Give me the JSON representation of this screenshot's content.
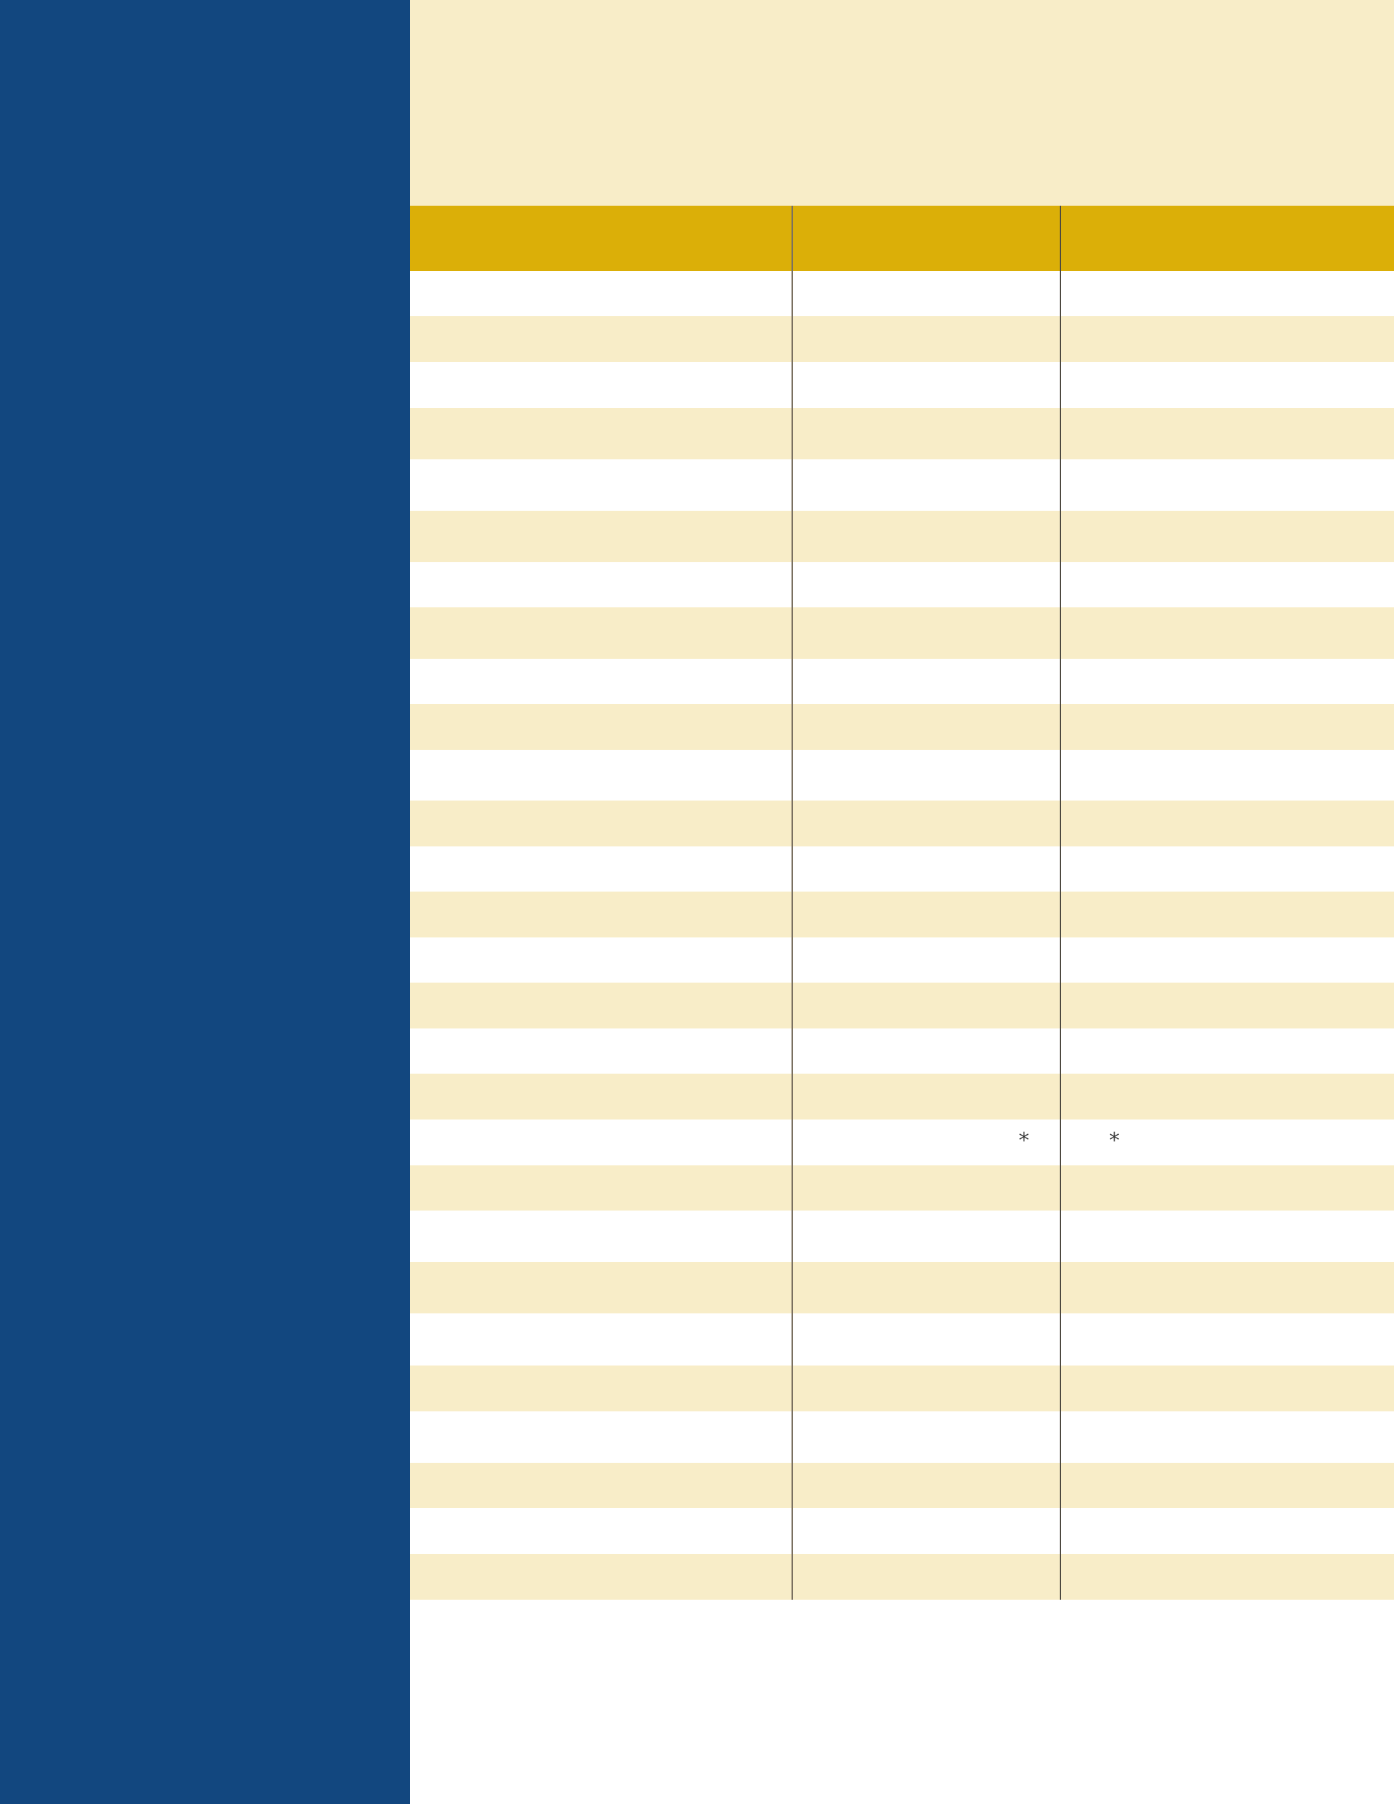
{
  "colors": {
    "sidebar": "#12477f",
    "stripe": "#f8edc8",
    "header": "#dbaf08",
    "background": "#ffffff",
    "rule": "#7a7060"
  },
  "table": {
    "columns": 3,
    "row_count": 29,
    "marks": {
      "middle_column": "*",
      "right_column": "*"
    }
  }
}
